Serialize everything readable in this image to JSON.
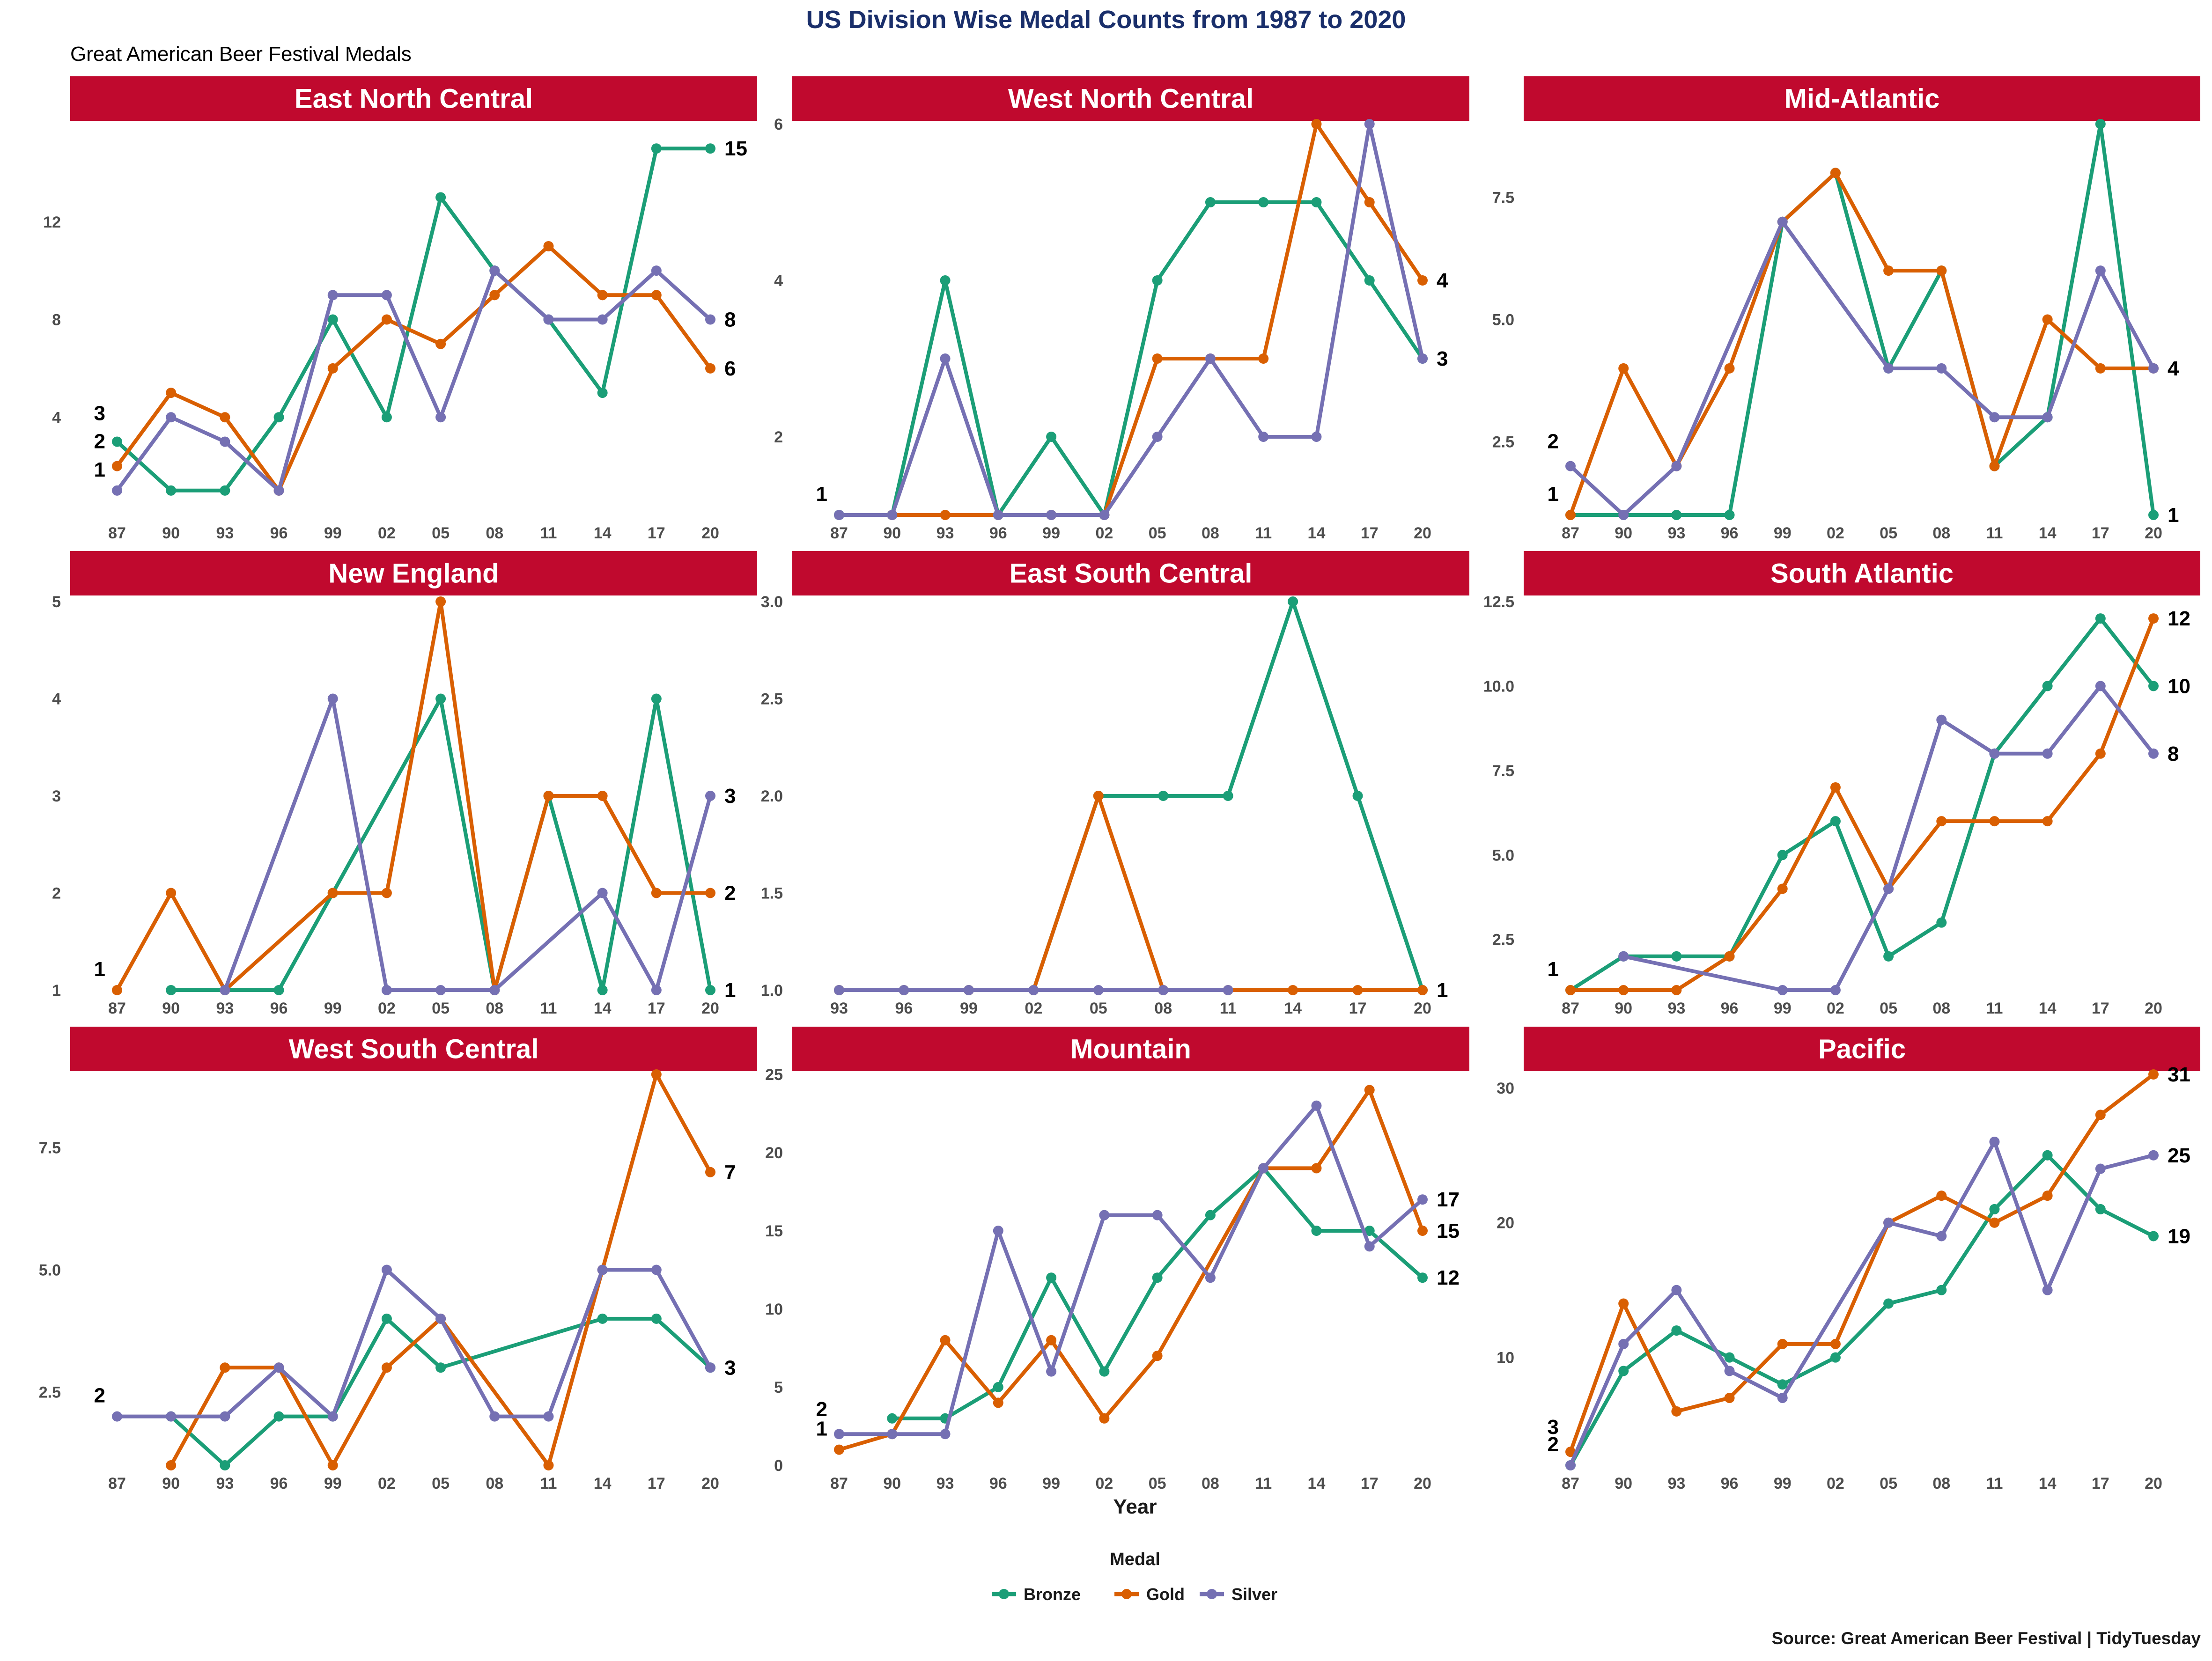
{
  "header": {
    "title": "US Division Wise Medal Counts from 1987 to 2020",
    "subtitle": "Great American Beer Festival Medals",
    "caption": "Source:  Great American Beer Festival | TidyTuesday",
    "xlabel": "Year"
  },
  "legend": {
    "title": "Medal",
    "position": "bottom-center",
    "items": [
      {
        "name": "Bronze",
        "color": "#1b9e77"
      },
      {
        "name": "Gold",
        "color": "#d95f02"
      },
      {
        "name": "Silver",
        "color": "#7570b3"
      }
    ]
  },
  "colors": {
    "strip": "#c0092e",
    "title": "#1a2f6b",
    "bronze": "#1b9e77",
    "gold": "#d95f02",
    "silver": "#7570b3"
  },
  "chart_data": [
    {
      "type": "line",
      "title": "East North Central",
      "categories": [
        "87",
        "90",
        "93",
        "96",
        "99",
        "02",
        "05",
        "08",
        "11",
        "14",
        "17",
        "20"
      ],
      "ylim": [
        0,
        16
      ],
      "yticks": [
        4,
        8,
        12
      ],
      "series": [
        {
          "name": "Bronze",
          "values": [
            3,
            1,
            1,
            4,
            8,
            4,
            13,
            10,
            8,
            5,
            15,
            15
          ],
          "end_label": "15"
        },
        {
          "name": "Gold",
          "values": [
            2,
            5,
            4,
            1,
            6,
            8,
            7,
            9,
            11,
            9,
            9,
            6
          ],
          "end_label": "6"
        },
        {
          "name": "Silver",
          "values": [
            1,
            4,
            3,
            1,
            9,
            9,
            4,
            10,
            8,
            8,
            10,
            8
          ],
          "end_label": "8"
        }
      ],
      "start_labels": [
        "3",
        "2",
        "1"
      ]
    },
    {
      "type": "line",
      "title": "West North Central",
      "categories": [
        "87",
        "90",
        "93",
        "96",
        "99",
        "02",
        "05",
        "08",
        "11",
        "14",
        "17",
        "20"
      ],
      "ylim": [
        1,
        6
      ],
      "yticks": [
        2,
        4,
        6
      ],
      "series": [
        {
          "name": "Bronze",
          "values": [
            1,
            1,
            4,
            1,
            2,
            1,
            4,
            5,
            5,
            5,
            4,
            3
          ],
          "end_label": "3"
        },
        {
          "name": "Gold",
          "values": [
            null,
            1,
            1,
            1,
            1,
            1,
            3,
            3,
            3,
            6,
            5,
            4
          ],
          "end_label": "4"
        },
        {
          "name": "Silver",
          "values": [
            1,
            1,
            3,
            1,
            1,
            1,
            2,
            3,
            2,
            2,
            6,
            3
          ],
          "end_label": ""
        }
      ],
      "start_labels": [
        "1"
      ]
    },
    {
      "type": "line",
      "title": "Mid-Atlantic",
      "categories": [
        "87",
        "90",
        "93",
        "96",
        "99",
        "02",
        "05",
        "08",
        "11",
        "14",
        "17",
        "20"
      ],
      "ylim": [
        1,
        9
      ],
      "yticks": [
        2.5,
        5.0,
        7.5
      ],
      "series": [
        {
          "name": "Bronze",
          "values": [
            1,
            1,
            1,
            1,
            7,
            8,
            4,
            6,
            2,
            3,
            9,
            1
          ],
          "end_label": "1"
        },
        {
          "name": "Gold",
          "values": [
            1,
            4,
            2,
            4,
            7,
            8,
            6,
            6,
            2,
            5,
            4,
            4
          ],
          "end_label": "4"
        },
        {
          "name": "Silver",
          "values": [
            2,
            1,
            2,
            null,
            7,
            null,
            4,
            4,
            3,
            3,
            6,
            4
          ],
          "end_label": ""
        }
      ],
      "start_labels": [
        "2",
        "1"
      ]
    },
    {
      "type": "line",
      "title": "New England",
      "categories": [
        "87",
        "90",
        "93",
        "96",
        "99",
        "02",
        "05",
        "08",
        "11",
        "14",
        "17",
        "20"
      ],
      "ylim": [
        1,
        5
      ],
      "yticks": [
        1,
        2,
        3,
        4,
        5
      ],
      "series": [
        {
          "name": "Bronze",
          "values": [
            null,
            1,
            1,
            1,
            2,
            null,
            4,
            1,
            3,
            1,
            4,
            1
          ],
          "end_label": "1"
        },
        {
          "name": "Gold",
          "values": [
            1,
            2,
            1,
            null,
            2,
            2,
            5,
            1,
            3,
            3,
            2,
            2
          ],
          "end_label": "2"
        },
        {
          "name": "Silver",
          "values": [
            null,
            null,
            1,
            null,
            4,
            1,
            1,
            1,
            null,
            2,
            1,
            3
          ],
          "end_label": "3"
        }
      ],
      "start_labels": [
        "1"
      ]
    },
    {
      "type": "line",
      "title": "East South Central",
      "categories": [
        "93",
        "96",
        "99",
        "02",
        "05",
        "08",
        "11",
        "14",
        "17",
        "20"
      ],
      "ylim": [
        1,
        3
      ],
      "yticks": [
        1.0,
        1.5,
        2.0,
        2.5,
        3.0
      ],
      "series": [
        {
          "name": "Bronze",
          "values": [
            1,
            1,
            1,
            1,
            2,
            2,
            2,
            3,
            2,
            1
          ],
          "end_label": ""
        },
        {
          "name": "Gold",
          "values": [
            1,
            1,
            1,
            1,
            2,
            1,
            1,
            1,
            1,
            1
          ],
          "end_label": "1"
        },
        {
          "name": "Silver",
          "values": [
            1,
            1,
            1,
            1,
            1,
            1,
            1,
            null,
            null,
            null
          ],
          "end_label": ""
        }
      ],
      "start_labels": []
    },
    {
      "type": "line",
      "title": "South Atlantic",
      "categories": [
        "87",
        "90",
        "93",
        "96",
        "99",
        "02",
        "05",
        "08",
        "11",
        "14",
        "17",
        "20"
      ],
      "ylim": [
        1,
        12.5
      ],
      "yticks": [
        2.5,
        5.0,
        7.5,
        10.0,
        12.5
      ],
      "series": [
        {
          "name": "Bronze",
          "values": [
            1,
            2,
            2,
            2,
            5,
            6,
            2,
            3,
            8,
            10,
            12,
            10
          ],
          "end_label": "10"
        },
        {
          "name": "Gold",
          "values": [
            1,
            1,
            1,
            2,
            4,
            7,
            4,
            6,
            6,
            6,
            8,
            12
          ],
          "end_label": "12"
        },
        {
          "name": "Silver",
          "values": [
            null,
            2,
            null,
            null,
            1,
            1,
            4,
            9,
            8,
            8,
            10,
            8
          ],
          "end_label": "8"
        }
      ],
      "start_labels": [
        "1"
      ]
    },
    {
      "type": "line",
      "title": "West South Central",
      "categories": [
        "87",
        "90",
        "93",
        "96",
        "99",
        "02",
        "05",
        "08",
        "11",
        "14",
        "17",
        "20"
      ],
      "ylim": [
        1,
        9
      ],
      "yticks": [
        2.5,
        5.0,
        7.5
      ],
      "series": [
        {
          "name": "Bronze",
          "values": [
            null,
            2,
            1,
            2,
            2,
            4,
            3,
            null,
            null,
            4,
            4,
            3
          ],
          "end_label": "3"
        },
        {
          "name": "Gold",
          "values": [
            null,
            1,
            3,
            3,
            1,
            3,
            4,
            null,
            1,
            5,
            9,
            7
          ],
          "end_label": "7"
        },
        {
          "name": "Silver",
          "values": [
            2,
            2,
            2,
            3,
            2,
            5,
            4,
            2,
            2,
            5,
            5,
            3
          ],
          "end_label": ""
        }
      ],
      "start_labels": [
        "2"
      ]
    },
    {
      "type": "line",
      "title": "Mountain",
      "categories": [
        "87",
        "90",
        "93",
        "96",
        "99",
        "02",
        "05",
        "08",
        "11",
        "14",
        "17",
        "20"
      ],
      "ylim": [
        0,
        25
      ],
      "yticks": [
        0,
        5,
        10,
        15,
        20,
        25
      ],
      "series": [
        {
          "name": "Bronze",
          "values": [
            null,
            3,
            3,
            5,
            12,
            6,
            12,
            16,
            19,
            15,
            15,
            12
          ],
          "end_label": "12"
        },
        {
          "name": "Gold",
          "values": [
            1,
            2,
            8,
            4,
            8,
            3,
            7,
            null,
            19,
            19,
            24,
            15
          ],
          "end_label": "15"
        },
        {
          "name": "Silver",
          "values": [
            2,
            2,
            2,
            15,
            6,
            16,
            16,
            12,
            19,
            23,
            14,
            17
          ],
          "end_label": "17"
        }
      ],
      "start_labels": [
        "2",
        "1"
      ]
    },
    {
      "type": "line",
      "title": "Pacific",
      "categories": [
        "87",
        "90",
        "93",
        "96",
        "99",
        "02",
        "05",
        "08",
        "11",
        "14",
        "17",
        "20"
      ],
      "ylim": [
        2,
        31
      ],
      "yticks": [
        10,
        20,
        30
      ],
      "series": [
        {
          "name": "Bronze",
          "values": [
            2,
            9,
            12,
            10,
            8,
            10,
            14,
            15,
            21,
            25,
            21,
            19
          ],
          "end_label": "19"
        },
        {
          "name": "Gold",
          "values": [
            3,
            14,
            6,
            7,
            11,
            11,
            20,
            22,
            20,
            22,
            28,
            31
          ],
          "end_label": "31"
        },
        {
          "name": "Silver",
          "values": [
            2,
            11,
            15,
            9,
            7,
            null,
            20,
            19,
            26,
            15,
            24,
            25
          ],
          "end_label": "25"
        }
      ],
      "start_labels": [
        "3",
        "2"
      ]
    }
  ]
}
